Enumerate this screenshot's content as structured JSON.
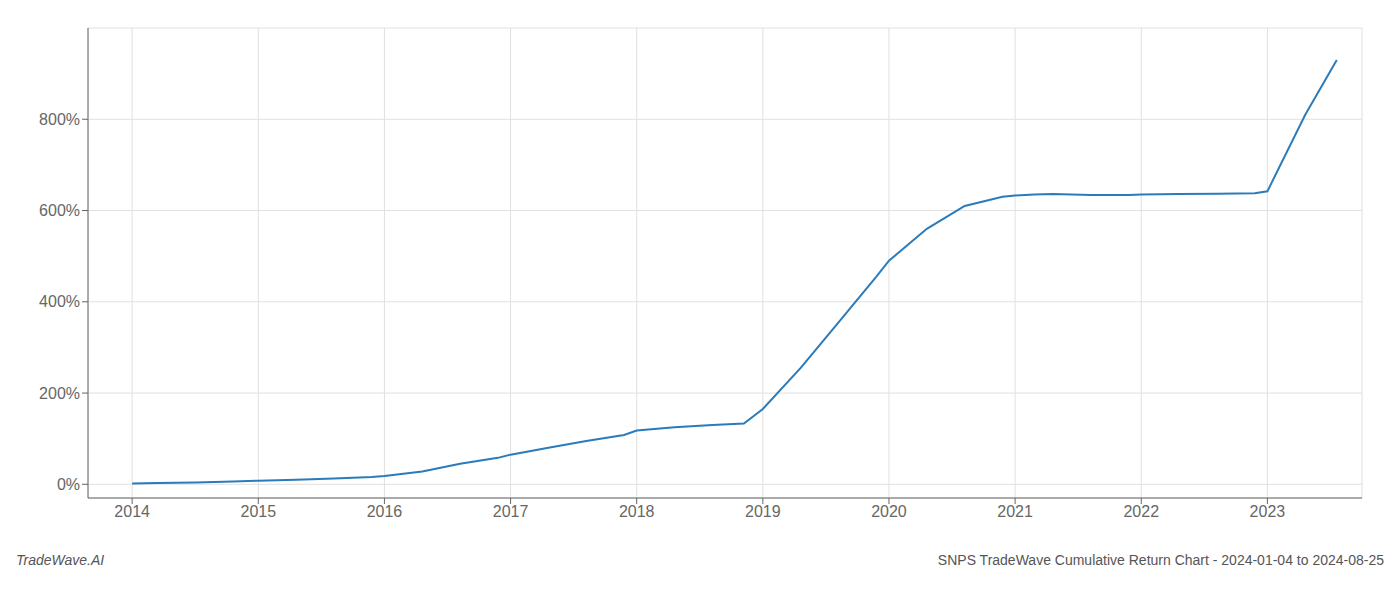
{
  "chart_data": {
    "type": "line",
    "title": "SNPS TradeWave Cumulative Return Chart - 2024-01-04 to 2024-08-25",
    "annotations": [
      "TradeWave.AI"
    ],
    "color": "#2b7bba",
    "x": [
      2014.0,
      2014.2,
      2014.5,
      2014.8,
      2015.0,
      2015.3,
      2015.6,
      2015.9,
      2016.0,
      2016.3,
      2016.6,
      2016.9,
      2017.0,
      2017.3,
      2017.6,
      2017.9,
      2018.0,
      2018.3,
      2018.6,
      2018.85,
      2019.0,
      2019.3,
      2019.6,
      2019.9,
      2020.0,
      2020.3,
      2020.6,
      2020.9,
      2021.0,
      2021.15,
      2021.3,
      2021.6,
      2021.9,
      2022.0,
      2022.3,
      2022.6,
      2022.9,
      2023.0,
      2023.3,
      2023.55
    ],
    "values": [
      2,
      3,
      4,
      6,
      8,
      10,
      13,
      16,
      18,
      28,
      45,
      58,
      65,
      80,
      95,
      108,
      118,
      125,
      130,
      133,
      165,
      255,
      355,
      455,
      490,
      560,
      610,
      630,
      633,
      635,
      636,
      634,
      634,
      635,
      636,
      637,
      638,
      642,
      810,
      930
    ],
    "xlim": [
      2013.65,
      2023.75
    ],
    "xticks": [
      2014,
      2015,
      2016,
      2017,
      2018,
      2019,
      2020,
      2021,
      2022,
      2023
    ],
    "ylim": [
      -30,
      1000
    ],
    "yticks": [
      {
        "value": 0,
        "label": "0%"
      },
      {
        "value": 200,
        "label": "200%"
      },
      {
        "value": 400,
        "label": "400%"
      },
      {
        "value": 600,
        "label": "600%"
      },
      {
        "value": 800,
        "label": "800%"
      }
    ],
    "grid": true
  }
}
